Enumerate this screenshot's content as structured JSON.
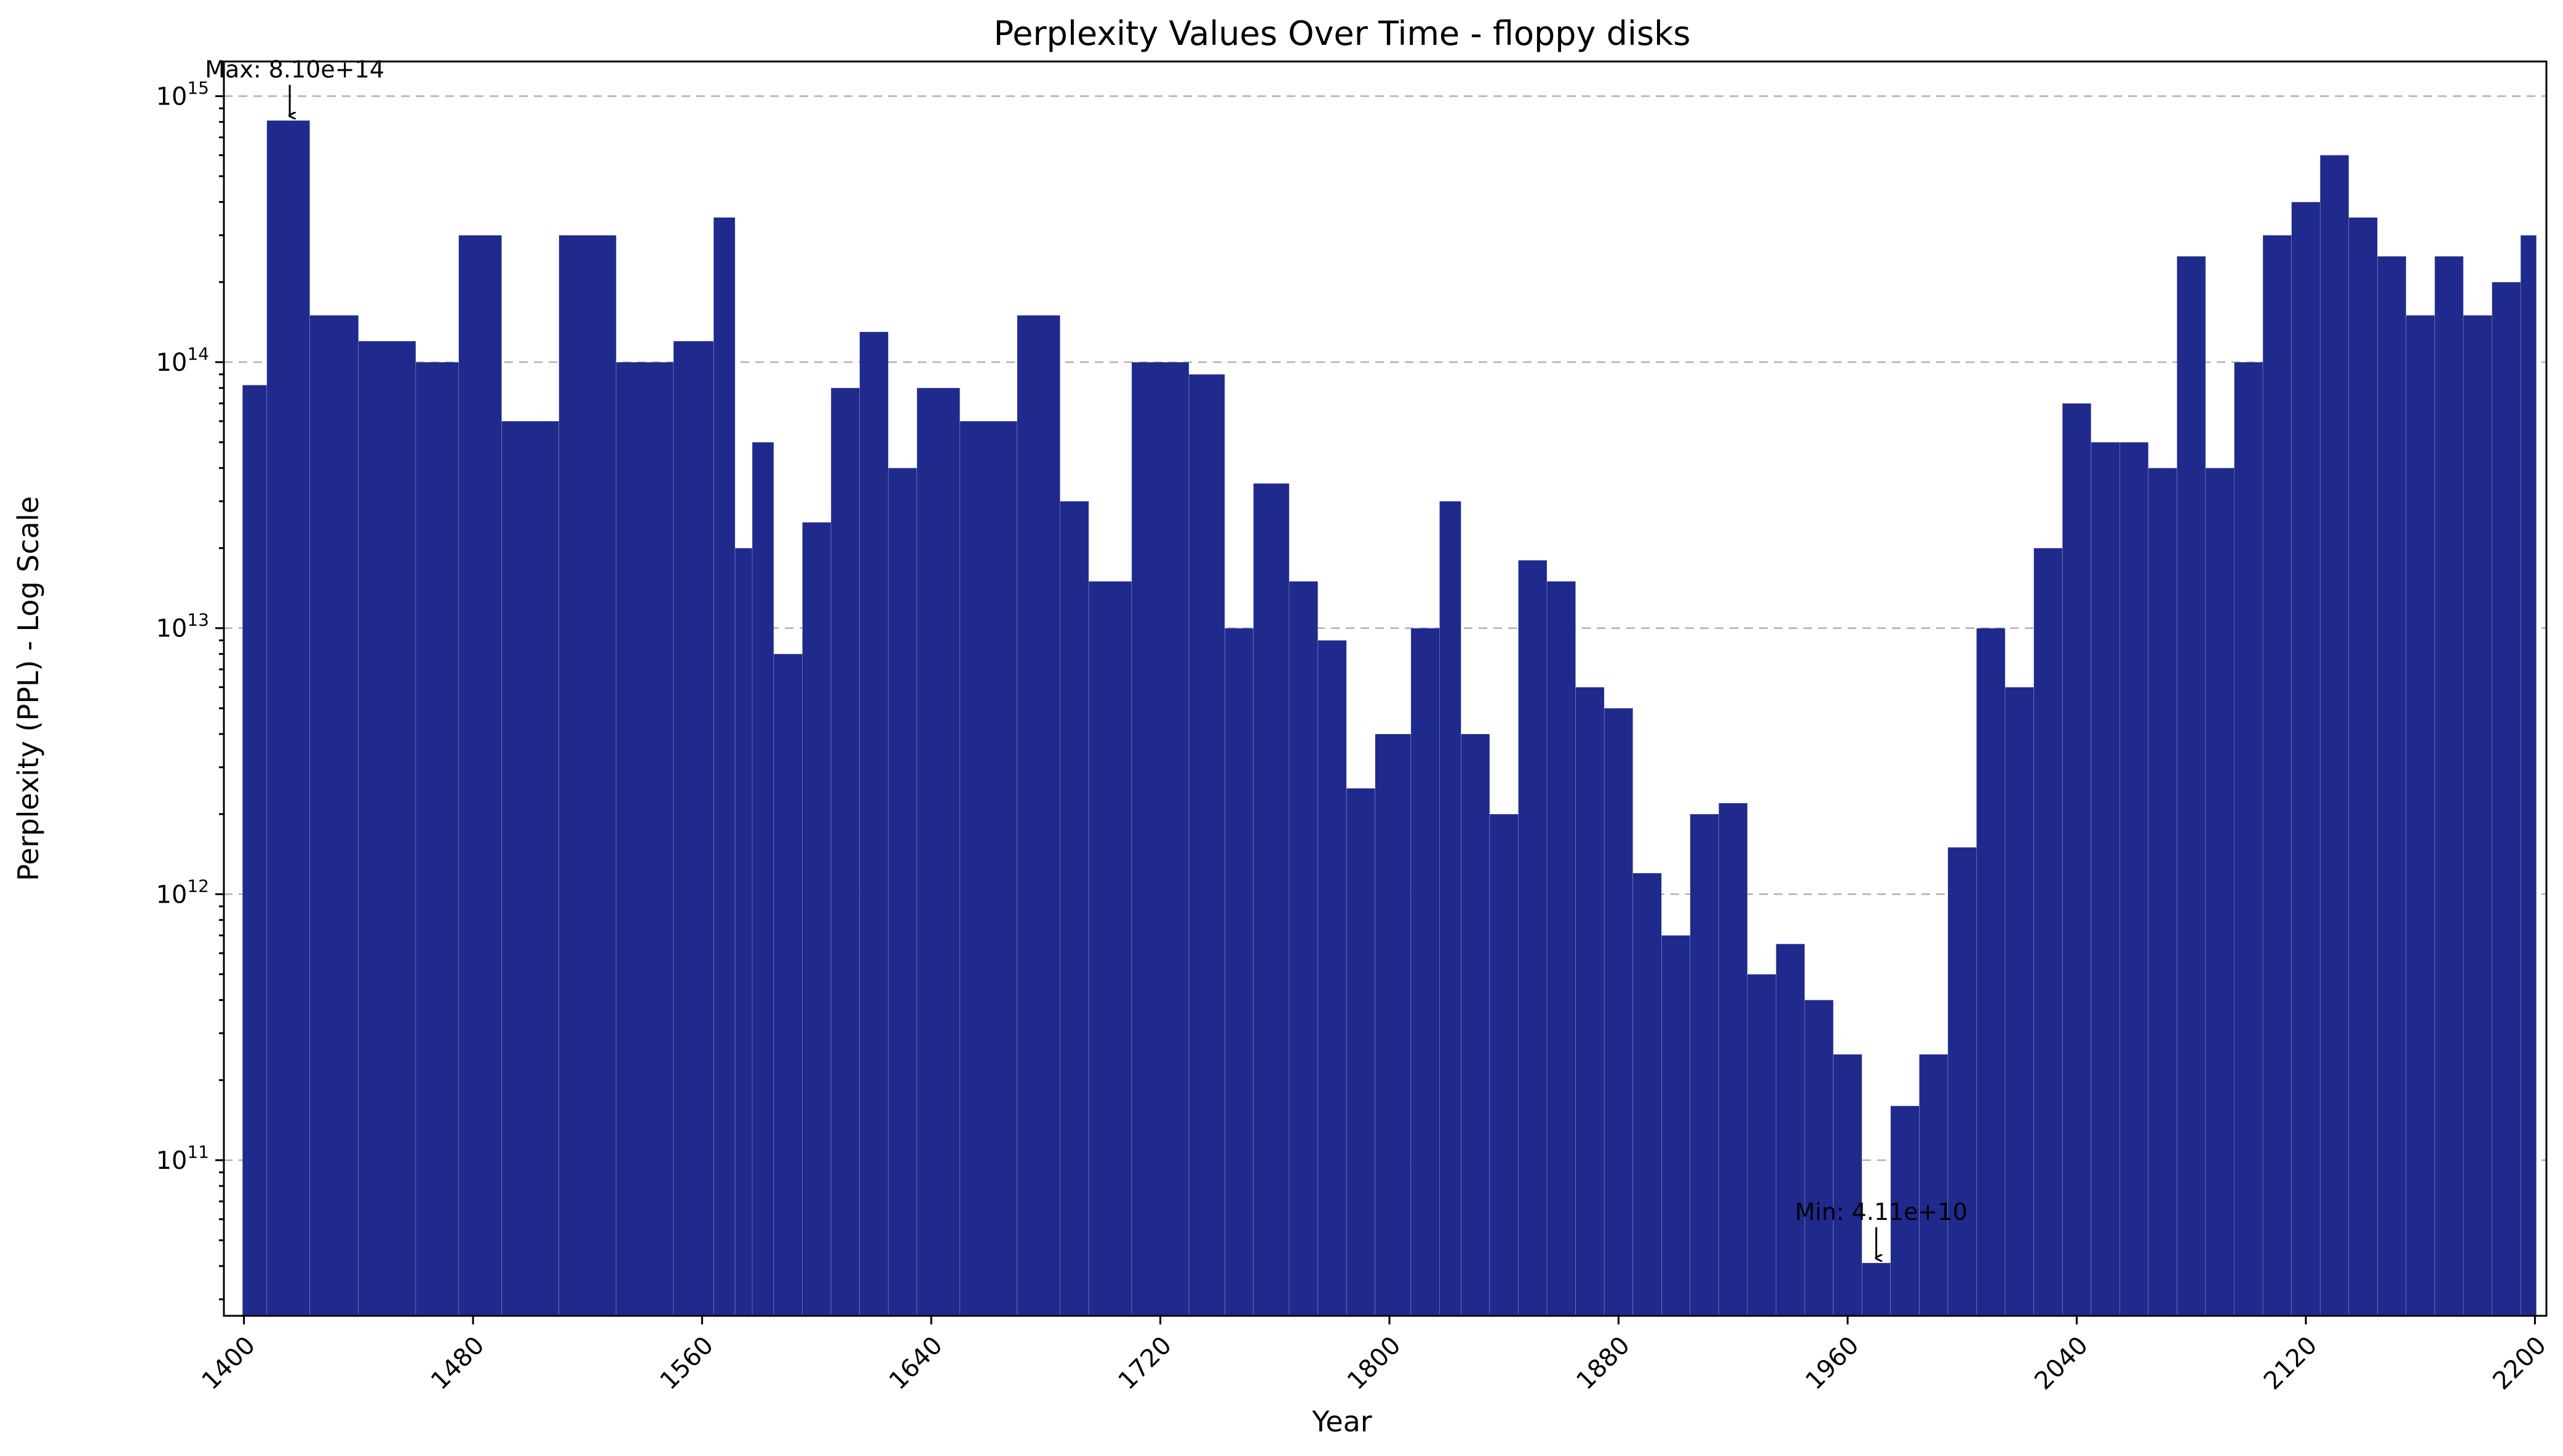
{
  "chart_data": {
    "type": "bar",
    "title": "Perplexity Values Over Time - floppy disks",
    "xlabel": "Year",
    "ylabel": "Perplexity (PPL) - Log Scale",
    "y_scale": "log",
    "grid": "horizontal dashed",
    "bar_color": "#1f2a8c",
    "x_ticks": [
      1400,
      1480,
      1560,
      1640,
      1720,
      1800,
      1880,
      1960,
      2040,
      2120,
      2200
    ],
    "x_tick_labels": [
      "1400",
      "1480",
      "1560",
      "1640",
      "1720",
      "1800",
      "1880",
      "1960",
      "2040",
      "2120",
      "2200"
    ],
    "xlim": [
      1393,
      2204
    ],
    "y_ticks": [
      {
        "base": "10",
        "exp": "11",
        "value": 100000000000.0
      },
      {
        "base": "10",
        "exp": "12",
        "value": 1000000000000.0
      },
      {
        "base": "10",
        "exp": "13",
        "value": 10000000000000.0
      },
      {
        "base": "10",
        "exp": "14",
        "value": 100000000000000.0
      },
      {
        "base": "10",
        "exp": "15",
        "value": 1000000000000000.0
      }
    ],
    "ylim": [
      26000000000.0,
      1350000000000000.0
    ],
    "annotations": [
      {
        "text": "Max: 8.10e+14",
        "x": 1416,
        "y": 810000000000000.0
      },
      {
        "text": "Min: 4.11e+10",
        "x": 1970,
        "y": 41100000000.0
      }
    ],
    "points": [
      [
        1400,
        82000000000000.0
      ],
      [
        1416,
        810000000000000.0
      ],
      [
        1430,
        150000000000000.0
      ],
      [
        1450,
        120000000000000.0
      ],
      [
        1470,
        100000000000000.0
      ],
      [
        1480,
        300000000000000.0
      ],
      [
        1500,
        60000000000000.0
      ],
      [
        1520,
        300000000000000.0
      ],
      [
        1540,
        100000000000000.0
      ],
      [
        1560,
        120000000000000.0
      ],
      [
        1568,
        350000000000000.0
      ],
      [
        1575,
        20000000000000.0
      ],
      [
        1580,
        50000000000000.0
      ],
      [
        1590,
        8000000000000.0
      ],
      [
        1600,
        25000000000000.0
      ],
      [
        1610,
        80000000000000.0
      ],
      [
        1620,
        130000000000000.0
      ],
      [
        1630,
        40000000000000.0
      ],
      [
        1640,
        80000000000000.0
      ],
      [
        1660,
        60000000000000.0
      ],
      [
        1680,
        150000000000000.0
      ],
      [
        1690,
        30000000000000.0
      ],
      [
        1700,
        15000000000000.0
      ],
      [
        1720,
        100000000000000.0
      ],
      [
        1740,
        90000000000000.0
      ],
      [
        1745,
        10000000000000.0
      ],
      [
        1760,
        35000000000000.0
      ],
      [
        1770,
        15000000000000.0
      ],
      [
        1780,
        9000000000000.0
      ],
      [
        1790,
        2500000000000.0
      ],
      [
        1800,
        4000000000000.0
      ],
      [
        1815,
        10000000000000.0
      ],
      [
        1820,
        30000000000000.0
      ],
      [
        1830,
        4000000000000.0
      ],
      [
        1840,
        2000000000000.0
      ],
      [
        1850,
        18000000000000.0
      ],
      [
        1860,
        15000000000000.0
      ],
      [
        1870,
        6000000000000.0
      ],
      [
        1880,
        5000000000000.0
      ],
      [
        1890,
        1200000000000.0
      ],
      [
        1900,
        700000000000.0
      ],
      [
        1910,
        2000000000000.0
      ],
      [
        1920,
        2200000000000.0
      ],
      [
        1930,
        500000000000.0
      ],
      [
        1940,
        650000000000.0
      ],
      [
        1950,
        400000000000.0
      ],
      [
        1960,
        250000000000.0
      ],
      [
        1970,
        41100000000.0
      ],
      [
        1980,
        160000000000.0
      ],
      [
        1990,
        250000000000.0
      ],
      [
        2000,
        1500000000000.0
      ],
      [
        2010,
        10000000000000.0
      ],
      [
        2020,
        6000000000000.0
      ],
      [
        2030,
        20000000000000.0
      ],
      [
        2040,
        70000000000000.0
      ],
      [
        2050,
        50000000000000.0
      ],
      [
        2060,
        50000000000000.0
      ],
      [
        2070,
        40000000000000.0
      ],
      [
        2080,
        250000000000000.0
      ],
      [
        2090,
        40000000000000.0
      ],
      [
        2100,
        100000000000000.0
      ],
      [
        2110,
        300000000000000.0
      ],
      [
        2120,
        400000000000000.0
      ],
      [
        2130,
        600000000000000.0
      ],
      [
        2140,
        350000000000000.0
      ],
      [
        2150,
        250000000000000.0
      ],
      [
        2160,
        150000000000000.0
      ],
      [
        2170,
        250000000000000.0
      ],
      [
        2180,
        150000000000000.0
      ],
      [
        2190,
        200000000000000.0
      ],
      [
        2200,
        300000000000000.0
      ]
    ]
  }
}
